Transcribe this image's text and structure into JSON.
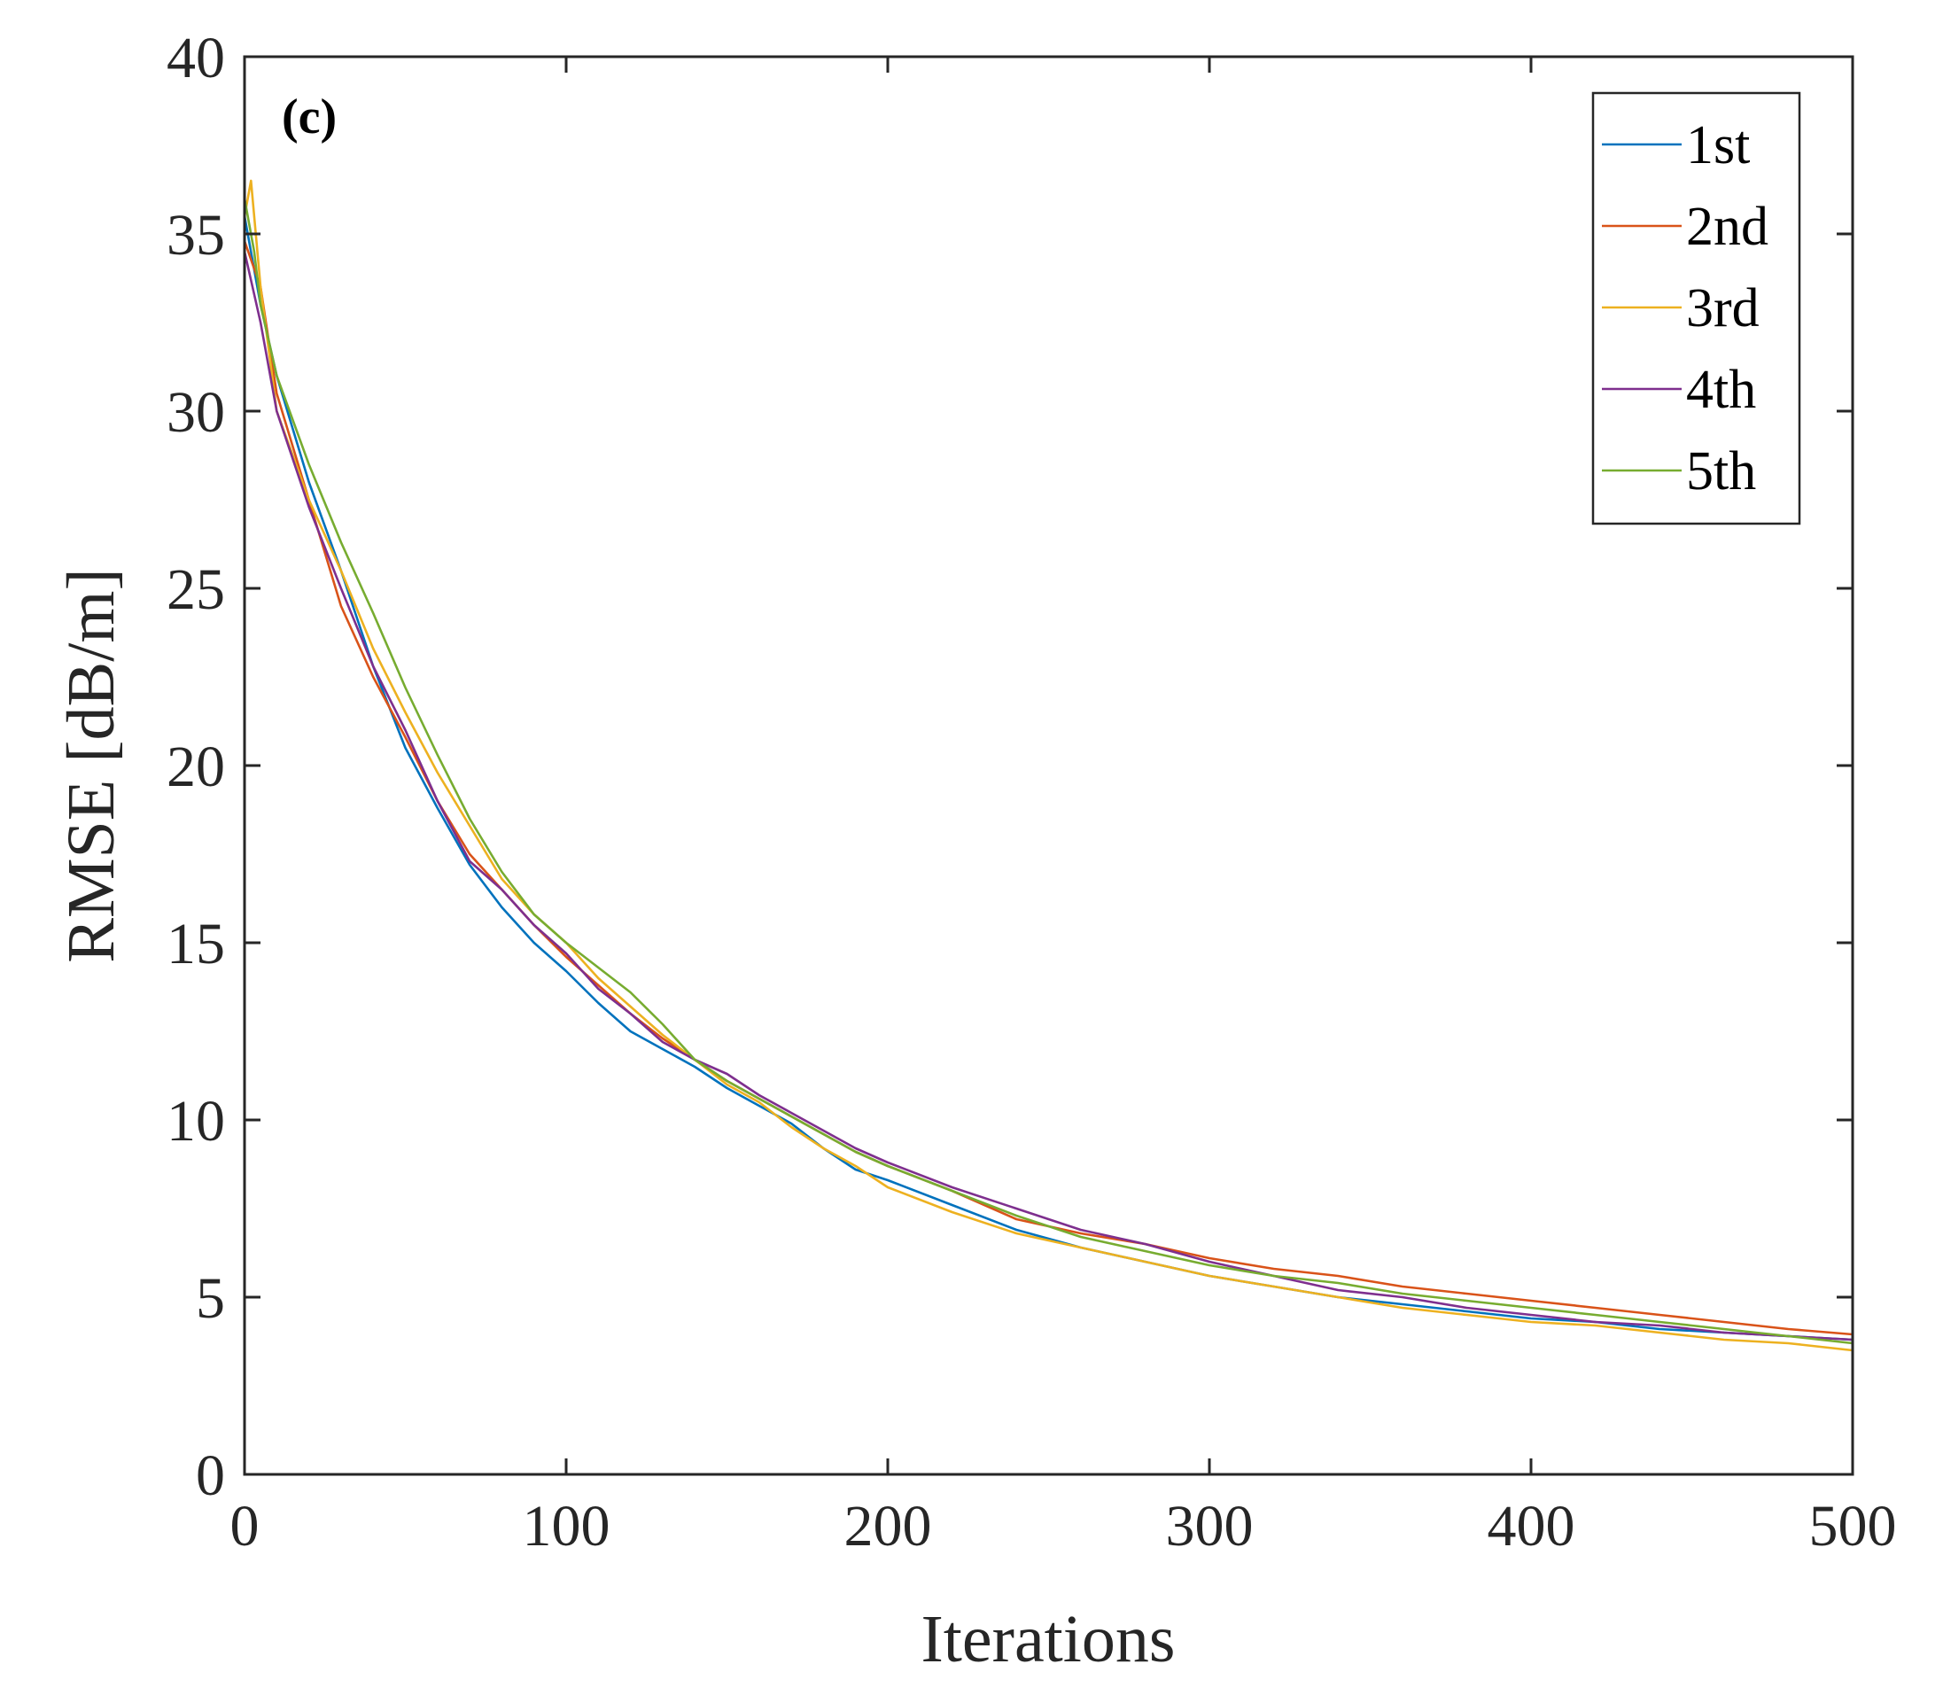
{
  "chart_data": {
    "type": "line",
    "panel_label": "(c)",
    "xlabel": "Iterations",
    "ylabel": "RMSE [dB/m]",
    "xlim": [
      0,
      500
    ],
    "ylim": [
      0,
      40
    ],
    "xticks": [
      0,
      100,
      200,
      300,
      400,
      500
    ],
    "yticks": [
      0,
      5,
      10,
      15,
      20,
      25,
      30,
      35,
      40
    ],
    "grid": false,
    "legend_position": "top-right",
    "series": [
      {
        "name": "1st",
        "color": "#0072BD",
        "x": [
          0,
          5,
          10,
          20,
          30,
          40,
          50,
          60,
          70,
          80,
          90,
          100,
          110,
          120,
          130,
          140,
          150,
          160,
          170,
          180,
          190,
          200,
          220,
          240,
          260,
          280,
          300,
          320,
          340,
          360,
          380,
          400,
          420,
          440,
          460,
          480,
          500
        ],
        "y": [
          35.5,
          33.0,
          31.0,
          28.0,
          25.5,
          22.8,
          20.5,
          18.8,
          17.2,
          16.0,
          15.0,
          14.2,
          13.3,
          12.5,
          12.0,
          11.5,
          10.9,
          10.4,
          9.9,
          9.2,
          8.6,
          8.3,
          7.6,
          6.9,
          6.4,
          6.0,
          5.6,
          5.3,
          5.0,
          4.8,
          4.6,
          4.4,
          4.3,
          4.1,
          4.0,
          3.9,
          3.8
        ]
      },
      {
        "name": "2nd",
        "color": "#D95319",
        "x": [
          0,
          5,
          10,
          20,
          30,
          40,
          50,
          60,
          70,
          80,
          90,
          100,
          110,
          120,
          130,
          140,
          150,
          160,
          170,
          180,
          190,
          200,
          220,
          240,
          260,
          280,
          300,
          320,
          340,
          360,
          380,
          400,
          420,
          440,
          460,
          480,
          500
        ],
        "y": [
          34.8,
          33.5,
          30.5,
          27.5,
          24.5,
          22.5,
          20.8,
          19.0,
          17.5,
          16.5,
          15.5,
          14.6,
          13.8,
          13.0,
          12.3,
          11.7,
          11.1,
          10.6,
          10.1,
          9.6,
          9.1,
          8.7,
          8.0,
          7.2,
          6.8,
          6.5,
          6.1,
          5.8,
          5.6,
          5.3,
          5.1,
          4.9,
          4.7,
          4.5,
          4.3,
          4.1,
          3.95
        ]
      },
      {
        "name": "3rd",
        "color": "#EDB120",
        "x": [
          0,
          2,
          5,
          10,
          20,
          30,
          40,
          50,
          60,
          70,
          80,
          90,
          100,
          110,
          120,
          130,
          140,
          150,
          160,
          170,
          180,
          190,
          200,
          220,
          240,
          260,
          280,
          300,
          320,
          340,
          360,
          380,
          400,
          420,
          440,
          460,
          480,
          500
        ],
        "y": [
          35.5,
          36.5,
          33.5,
          30.0,
          27.5,
          25.5,
          23.3,
          21.5,
          19.8,
          18.3,
          16.8,
          15.8,
          15.0,
          14.0,
          13.2,
          12.4,
          11.7,
          11.0,
          10.5,
          9.8,
          9.2,
          8.7,
          8.1,
          7.4,
          6.8,
          6.4,
          6.0,
          5.6,
          5.3,
          5.0,
          4.7,
          4.5,
          4.3,
          4.2,
          4.0,
          3.8,
          3.7,
          3.5
        ]
      },
      {
        "name": "4th",
        "color": "#7E2F8E",
        "x": [
          0,
          5,
          10,
          20,
          30,
          40,
          50,
          60,
          70,
          80,
          90,
          100,
          110,
          120,
          130,
          140,
          150,
          160,
          170,
          180,
          190,
          200,
          220,
          240,
          260,
          280,
          300,
          320,
          340,
          360,
          380,
          400,
          420,
          440,
          460,
          480,
          500
        ],
        "y": [
          34.5,
          32.5,
          30.0,
          27.3,
          25.0,
          22.8,
          21.0,
          19.0,
          17.3,
          16.5,
          15.5,
          14.7,
          13.7,
          13.0,
          12.2,
          11.7,
          11.3,
          10.7,
          10.2,
          9.7,
          9.2,
          8.8,
          8.1,
          7.5,
          6.9,
          6.5,
          6.0,
          5.6,
          5.2,
          5.0,
          4.7,
          4.5,
          4.3,
          4.2,
          4.0,
          3.9,
          3.8
        ]
      },
      {
        "name": "5th",
        "color": "#77AC30",
        "x": [
          0,
          3,
          5,
          10,
          20,
          30,
          40,
          50,
          60,
          70,
          80,
          90,
          100,
          110,
          120,
          130,
          140,
          150,
          160,
          170,
          180,
          190,
          200,
          220,
          240,
          260,
          280,
          300,
          320,
          340,
          360,
          380,
          400,
          420,
          440,
          460,
          480,
          500
        ],
        "y": [
          36.0,
          34.5,
          33.0,
          31.0,
          28.5,
          26.3,
          24.3,
          22.2,
          20.3,
          18.5,
          17.0,
          15.8,
          15.0,
          14.3,
          13.6,
          12.7,
          11.7,
          11.1,
          10.6,
          10.1,
          9.6,
          9.1,
          8.7,
          8.0,
          7.3,
          6.7,
          6.3,
          5.9,
          5.6,
          5.4,
          5.1,
          4.9,
          4.7,
          4.5,
          4.3,
          4.1,
          3.9,
          3.7
        ]
      }
    ]
  }
}
